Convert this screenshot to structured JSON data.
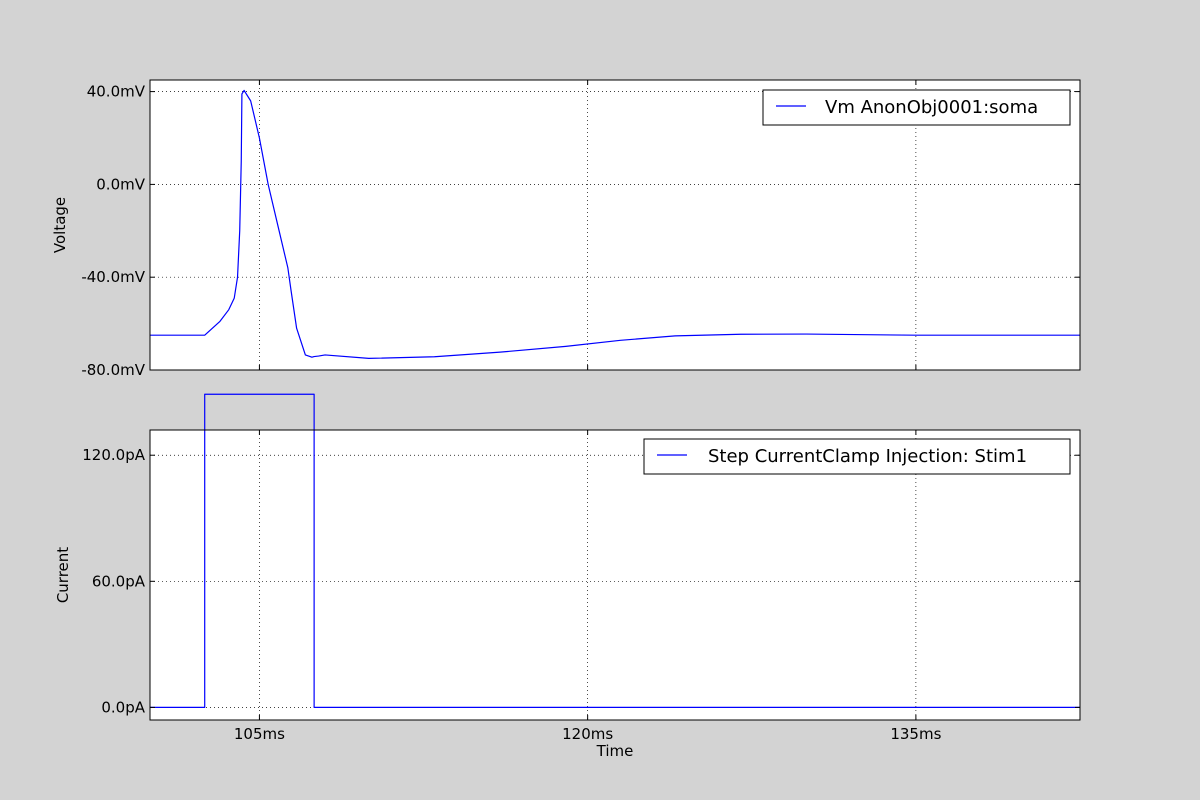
{
  "chart_data": [
    {
      "type": "line",
      "ylabel": "Voltage",
      "xlim": [
        100,
        142.5
      ],
      "ylim": [
        -80,
        45
      ],
      "yticks": [
        {
          "value": -80,
          "label": "-80.0mV"
        },
        {
          "value": -40,
          "label": "-40.0mV"
        },
        {
          "value": 0,
          "label": "0.0mV"
        },
        {
          "value": 40,
          "label": "40.0mV"
        }
      ],
      "xticks": [
        105,
        120,
        135
      ],
      "grid": true,
      "legend_position": "top-right",
      "series": [
        {
          "name": "Vm AnonObj0001:soma",
          "color": "#0000ff",
          "x": [
            100,
            102.5,
            103.2,
            103.6,
            103.85,
            104.0,
            104.1,
            104.17,
            104.2,
            104.3,
            104.6,
            105.0,
            105.4,
            105.9,
            106.3,
            106.45,
            106.7,
            107.1,
            107.4,
            107.5,
            107.7,
            108.0,
            110,
            113,
            116,
            119,
            121.5,
            124,
            127,
            130,
            135,
            142.5
          ],
          "y": [
            -65,
            -65,
            -59,
            -54,
            -49,
            -40,
            -20,
            10,
            39,
            40.5,
            36,
            20,
            0,
            -20,
            -36,
            -46,
            -62,
            -73.5,
            -74.5,
            -74.2,
            -74,
            -73.5,
            -75,
            -74.3,
            -72.3,
            -69.8,
            -67.2,
            -65.3,
            -64.6,
            -64.5,
            -65,
            -65
          ]
        }
      ]
    },
    {
      "type": "line",
      "xlabel": "Time",
      "ylabel": "Current",
      "xlim": [
        100,
        142.5
      ],
      "ylim": [
        -6,
        132
      ],
      "yticks": [
        {
          "value": 0,
          "label": "0.0pA"
        },
        {
          "value": 60,
          "label": "60.0pA"
        },
        {
          "value": 120,
          "label": "120.0pA"
        }
      ],
      "xticks": [
        {
          "value": 105,
          "label": "105ms"
        },
        {
          "value": 120,
          "label": "120ms"
        },
        {
          "value": 135,
          "label": "135ms"
        }
      ],
      "grid": true,
      "legend_position": "top-right",
      "series": [
        {
          "name": "Step CurrentClamp Injection: Stim1",
          "color": "#0000ff",
          "x": [
            100,
            102.5,
            102.5,
            107.5,
            107.5,
            142.5
          ],
          "y": [
            0,
            0,
            149,
            149,
            0,
            0
          ]
        }
      ]
    }
  ]
}
